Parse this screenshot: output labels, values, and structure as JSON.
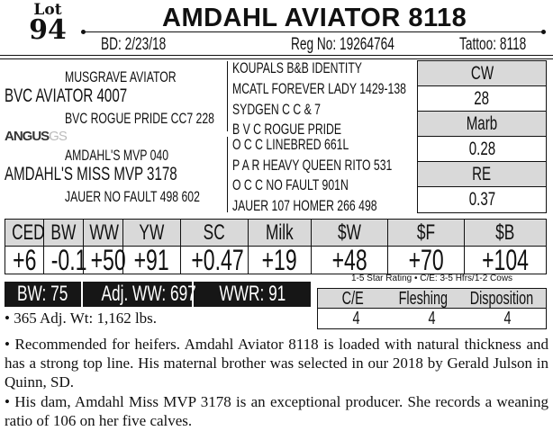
{
  "lot": {
    "label": "Lot",
    "number": "94"
  },
  "title": "AMDAHL AVIATOR 8118",
  "info": {
    "bd": "BD: 2/23/18",
    "reg": "Reg No: 19264764",
    "tattoo": "Tattoo: 8118"
  },
  "pedigree": {
    "sire_sire": "MUSGRAVE AVIATOR",
    "sire": "BVC AVIATOR 4007",
    "sire_dam": "BVC ROGUE PRIDE CC7 228",
    "dam_sire": "AMDAHL'S MVP 040",
    "dam": "AMDAHL'S MISS MVP 3178",
    "dam_dam": "JAUER NO FAULT 498 602",
    "logo": "ANGUS GS",
    "great": [
      "KOUPALS B&B IDENTITY",
      "MCATL FOREVER LADY 1429-138",
      "SYDGEN C C & 7",
      "B V C ROGUE PRIDE",
      "O C C LINEBRED 661L",
      "P A R HEAVY QUEEN RITO 531",
      "O C C NO FAULT 901N",
      "JAUER 107 HOMER 266 498"
    ]
  },
  "carcass": [
    {
      "label": "CW",
      "value": "28"
    },
    {
      "label": "Marb",
      "value": "0.28"
    },
    {
      "label": "RE",
      "value": "0.37"
    }
  ],
  "epd": [
    {
      "label": "CED",
      "value": "+6"
    },
    {
      "label": "BW",
      "value": "-0.1"
    },
    {
      "label": "WW",
      "value": "+50"
    },
    {
      "label": "YW",
      "value": "+91"
    },
    {
      "label": "SC",
      "value": "+0.47"
    },
    {
      "label": "Milk",
      "value": "+19"
    },
    {
      "label": "$W",
      "value": "+48"
    },
    {
      "label": "$F",
      "value": "+70"
    },
    {
      "label": "$B",
      "value": "+104"
    }
  ],
  "weights": {
    "bw": "BW: 75",
    "adj_ww": "Adj. WW: 697",
    "wwr": "WWR: 91"
  },
  "rating": {
    "note": "1-5 Star Rating • C/E: 3-5 Hfrs/1-2 Cows",
    "headers": [
      "C/E",
      "Fleshing",
      "Disposition"
    ],
    "values": [
      "4",
      "4",
      "4"
    ]
  },
  "notes": [
    "• 365 Adj. Wt: 1,162 lbs.",
    "• Recommended for heifers. Amdahl Aviator 8118 is loaded with natural thickness and has a strong top line. His maternal brother was selected in our 2018 by Gerald Julson in Quinn,  SD.",
    "• His dam, Amdahl Miss MVP 3178 is an exceptional producer. She records a weaning ratio of 106 on her five calves."
  ]
}
